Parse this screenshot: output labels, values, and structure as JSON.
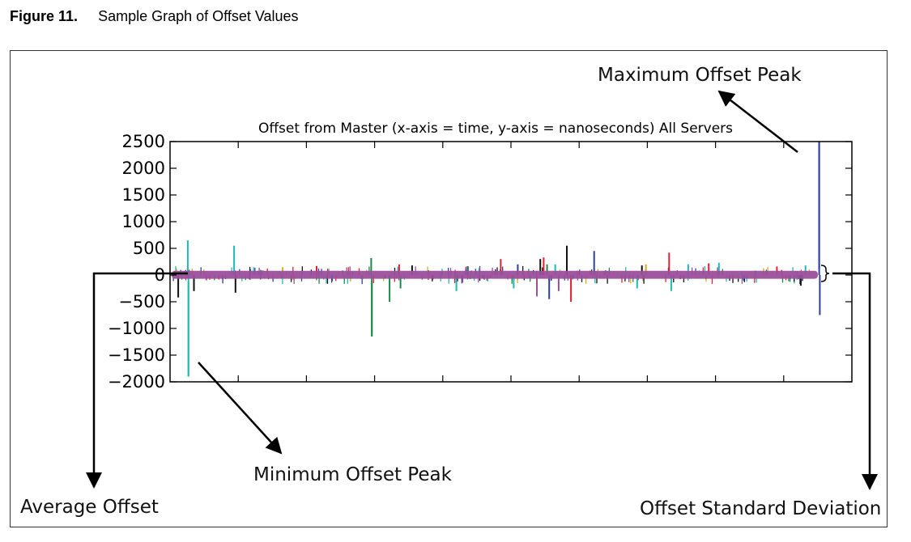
{
  "figure": {
    "label": "Figure 11.",
    "caption": "Sample Graph of Offset Values"
  },
  "annotations": {
    "max_peak": "Maximum Offset Peak",
    "min_peak": "Minimum Offset Peak",
    "average": "Average Offset",
    "std_dev": "Offset Standard Deviation"
  },
  "colors": {
    "band": "#9b4f9b",
    "series": [
      "#2c3e9e",
      "#1fb8b8",
      "#1a8a4a",
      "#e02030",
      "#d4b020",
      "#111111",
      "#9b4f9b"
    ]
  },
  "chart_data": {
    "type": "line",
    "title": "Offset from Master (x-axis = time, y-axis = nanoseconds) All Servers",
    "xlabel": "",
    "ylabel": "",
    "ylim": [
      -2000,
      2500
    ],
    "yticks": [
      2500,
      2000,
      1500,
      1000,
      500,
      0,
      -500,
      -1000,
      -1500,
      -2000
    ],
    "ytick_labels": [
      "2500",
      "2000",
      "1500",
      "1000",
      "500",
      "0",
      "−500",
      "−1000",
      "−1500",
      "−2000"
    ],
    "xlim": [
      0,
      100
    ],
    "grid": false,
    "band": {
      "ymin": -70,
      "ymax": 80
    },
    "spikes": [
      {
        "x": 1.2,
        "y": -420,
        "color": "#111111"
      },
      {
        "x": 2.6,
        "y": 650,
        "color": "#1fb8b8"
      },
      {
        "x": 2.7,
        "y": -1900,
        "color": "#1fb8b8"
      },
      {
        "x": 3.5,
        "y": -300,
        "color": "#111111"
      },
      {
        "x": 9.4,
        "y": 550,
        "color": "#1fb8b8"
      },
      {
        "x": 9.6,
        "y": -330,
        "color": "#111111"
      },
      {
        "x": 21.5,
        "y": 170,
        "color": "#e02030"
      },
      {
        "x": 29.5,
        "y": 320,
        "color": "#1a8a4a"
      },
      {
        "x": 29.6,
        "y": -1150,
        "color": "#1a8a4a"
      },
      {
        "x": 32.2,
        "y": -500,
        "color": "#1a8a4a"
      },
      {
        "x": 33.6,
        "y": 200,
        "color": "#e02030"
      },
      {
        "x": 33.8,
        "y": -250,
        "color": "#1a8a4a"
      },
      {
        "x": 35.5,
        "y": 180,
        "color": "#111111"
      },
      {
        "x": 42.0,
        "y": -300,
        "color": "#1fb8b8"
      },
      {
        "x": 48.5,
        "y": 300,
        "color": "#e02030"
      },
      {
        "x": 50.4,
        "y": -250,
        "color": "#1fb8b8"
      },
      {
        "x": 51.0,
        "y": 200,
        "color": "#2c3e9e"
      },
      {
        "x": 53.8,
        "y": -400,
        "color": "#9b4f9b"
      },
      {
        "x": 54.3,
        "y": 300,
        "color": "#111111"
      },
      {
        "x": 54.8,
        "y": 330,
        "color": "#e02030"
      },
      {
        "x": 55.3,
        "y": 200,
        "color": "#1a8a4a"
      },
      {
        "x": 55.6,
        "y": -450,
        "color": "#2c3e9e"
      },
      {
        "x": 56.5,
        "y": 200,
        "color": "#1fb8b8"
      },
      {
        "x": 57.0,
        "y": -300,
        "color": "#9b4f9b"
      },
      {
        "x": 58.2,
        "y": 550,
        "color": "#111111"
      },
      {
        "x": 58.8,
        "y": -500,
        "color": "#e02030"
      },
      {
        "x": 62.2,
        "y": 450,
        "color": "#2c3e9e"
      },
      {
        "x": 68.5,
        "y": -250,
        "color": "#1fb8b8"
      },
      {
        "x": 69.2,
        "y": 180,
        "color": "#111111"
      },
      {
        "x": 69.8,
        "y": 200,
        "color": "#d4b020"
      },
      {
        "x": 73.2,
        "y": 420,
        "color": "#e02030"
      },
      {
        "x": 73.5,
        "y": -300,
        "color": "#1fb8b8"
      },
      {
        "x": 76.0,
        "y": 200,
        "color": "#1fb8b8"
      },
      {
        "x": 79.0,
        "y": 220,
        "color": "#e02030"
      },
      {
        "x": 80.5,
        "y": 230,
        "color": "#1fb8b8"
      },
      {
        "x": 89.0,
        "y": 160,
        "color": "#e02030"
      },
      {
        "x": 92.5,
        "y": -200,
        "color": "#111111"
      },
      {
        "x": 93.2,
        "y": 180,
        "color": "#1fb8b8"
      },
      {
        "x": 95.2,
        "y": 2500,
        "color": "#2c3e9e"
      },
      {
        "x": 95.3,
        "y": -750,
        "color": "#2c3e9e"
      }
    ]
  }
}
